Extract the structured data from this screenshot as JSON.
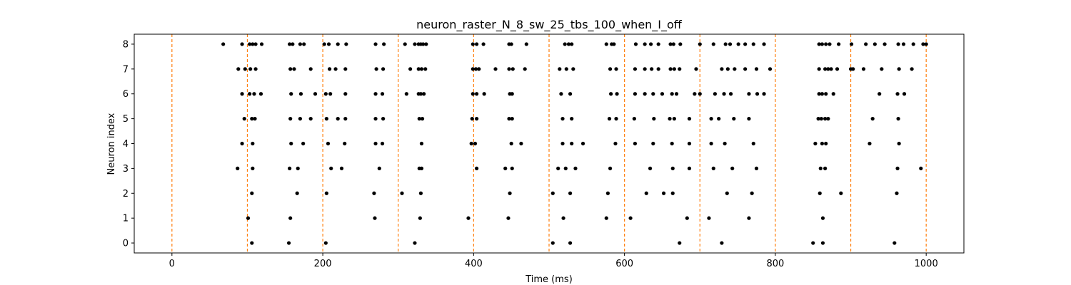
{
  "chart_data": {
    "type": "scatter",
    "title": "neuron_raster_N_8_sw_25_tbs_100_when_I_off",
    "xlabel": "Time (ms)",
    "ylabel": "Neuron index",
    "xlim": [
      -50,
      1050
    ],
    "ylim": [
      -0.4,
      8.4
    ],
    "xticks": [
      0,
      200,
      400,
      600,
      800,
      1000
    ],
    "yticks": [
      0,
      1,
      2,
      3,
      4,
      5,
      6,
      7,
      8
    ],
    "vlines": [
      0,
      100,
      200,
      300,
      400,
      500,
      600,
      700,
      800,
      900,
      1000
    ],
    "vline_color": "#ff7f0e",
    "marker_color": "#000000",
    "series": [
      {
        "name": "neuron 0",
        "y": 0,
        "x": [
          106,
          155,
          204,
          322,
          505,
          528,
          673,
          729,
          850,
          863,
          958
        ]
      },
      {
        "name": "neuron 1",
        "y": 1,
        "x": [
          101,
          157,
          269,
          329,
          393,
          446,
          519,
          576,
          608,
          683,
          712,
          765,
          863
        ]
      },
      {
        "name": "neuron 2",
        "y": 2,
        "x": [
          106,
          166,
          205,
          268,
          305,
          330,
          448,
          505,
          528,
          578,
          629,
          652,
          664,
          736,
          769,
          859,
          887,
          961
        ]
      },
      {
        "name": "neuron 3",
        "y": 3,
        "x": [
          87,
          107,
          156,
          167,
          211,
          225,
          275,
          328,
          331,
          404,
          442,
          451,
          512,
          522,
          535,
          581,
          634,
          664,
          686,
          718,
          743,
          775,
          860,
          866,
          962,
          993
        ]
      },
      {
        "name": "neuron 4",
        "y": 4,
        "x": [
          93,
          107,
          158,
          174,
          207,
          229,
          270,
          279,
          331,
          397,
          402,
          450,
          463,
          518,
          530,
          545,
          588,
          614,
          638,
          663,
          686,
          715,
          733,
          771,
          853,
          862,
          867,
          925,
          964
        ]
      },
      {
        "name": "neuron 5",
        "y": 5,
        "x": [
          96,
          106,
          110,
          157,
          170,
          184,
          205,
          220,
          230,
          270,
          280,
          328,
          332,
          398,
          404,
          447,
          451,
          518,
          530,
          580,
          589,
          613,
          639,
          660,
          666,
          686,
          715,
          725,
          745,
          765,
          857,
          861,
          866,
          870,
          929,
          963
        ]
      },
      {
        "name": "neuron 6",
        "y": 6,
        "x": [
          93,
          103,
          109,
          118,
          158,
          171,
          190,
          204,
          210,
          230,
          270,
          279,
          311,
          327,
          330,
          334,
          399,
          404,
          414,
          448,
          451,
          516,
          528,
          582,
          590,
          614,
          627,
          638,
          650,
          663,
          669,
          693,
          700,
          720,
          732,
          741,
          765,
          776,
          785,
          858,
          862,
          867,
          877,
          938,
          962,
          971
        ]
      },
      {
        "name": "neuron 7",
        "y": 7,
        "x": [
          88,
          97,
          104,
          111,
          157,
          162,
          184,
          209,
          217,
          230,
          271,
          280,
          316,
          327,
          331,
          336,
          399,
          403,
          407,
          429,
          447,
          452,
          468,
          514,
          523,
          532,
          581,
          589,
          614,
          627,
          636,
          645,
          661,
          666,
          673,
          695,
          729,
          737,
          746,
          760,
          775,
          793,
          858,
          866,
          870,
          874,
          882,
          900,
          903,
          917,
          941,
          964,
          981
        ]
      },
      {
        "name": "neuron 8",
        "y": 8,
        "x": [
          68,
          93,
          103,
          107,
          111,
          119,
          156,
          160,
          170,
          175,
          202,
          208,
          220,
          231,
          270,
          281,
          309,
          322,
          327,
          330,
          333,
          337,
          399,
          404,
          413,
          447,
          450,
          470,
          521,
          526,
          530,
          576,
          583,
          586,
          615,
          627,
          635,
          645,
          661,
          665,
          674,
          700,
          718,
          734,
          740,
          751,
          760,
          771,
          785,
          858,
          862,
          867,
          872,
          884,
          901,
          920,
          932,
          945,
          963,
          970,
          983,
          996,
          1000
        ]
      }
    ]
  }
}
